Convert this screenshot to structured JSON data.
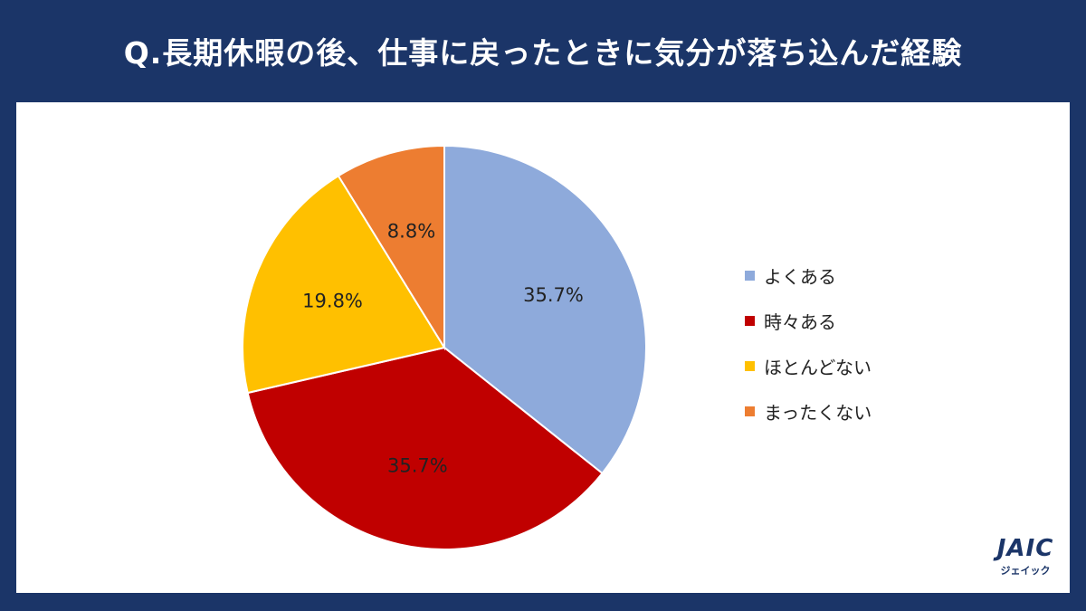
{
  "title": "Q.長期休暇の後、仕事に戻ったときに気分が落ち込んだ経験",
  "chart_data": {
    "type": "pie",
    "categories": [
      "よくある",
      "時々ある",
      "ほとんどない",
      "まったくない"
    ],
    "values": [
      35.7,
      35.7,
      19.8,
      8.8
    ],
    "data_labels": [
      "35.7%",
      "35.7%",
      "19.8%",
      "8.8%"
    ],
    "colors": [
      "#8eaadb",
      "#c00000",
      "#ffc000",
      "#ed7d31"
    ],
    "start_angle": "12 o'clock",
    "direction": "clockwise",
    "legend_position": "right"
  },
  "logo": {
    "mark": "JAIC",
    "sub": "ジェイック"
  }
}
